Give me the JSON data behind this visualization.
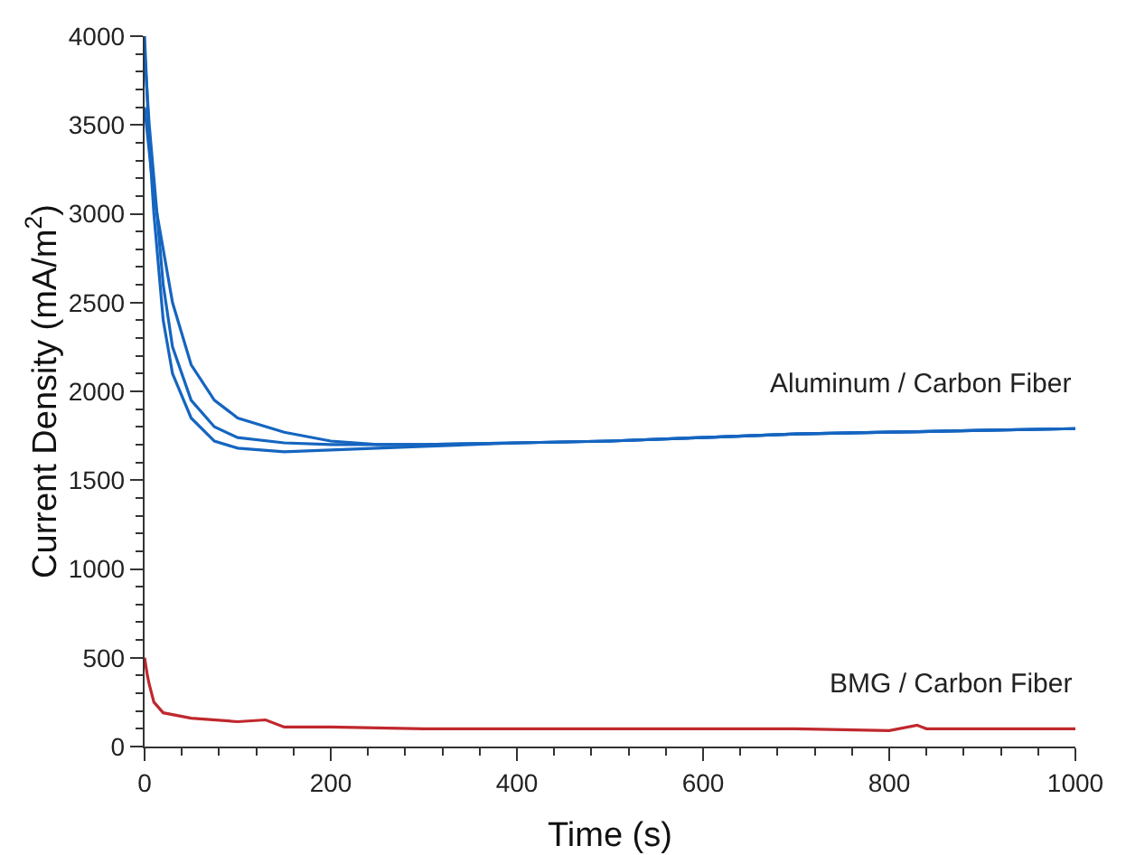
{
  "chart_data": {
    "type": "line",
    "xlabel": "Time (s)",
    "ylabel": "Current Density (mA/m$^{2}$)",
    "xlim": [
      0,
      1000
    ],
    "ylim": [
      0,
      4000
    ],
    "xticks": [
      0,
      200,
      400,
      600,
      800,
      1000
    ],
    "yticks": [
      0,
      500,
      1000,
      1500,
      2000,
      2500,
      3000,
      3500,
      4000
    ],
    "grid": false,
    "legend": false,
    "marker": "none",
    "line_style": "solid",
    "series": [
      {
        "name": "Aluminum / Carbon Fiber",
        "color": "#1565c0",
        "x": [
          0,
          5,
          10,
          20,
          30,
          50,
          75,
          100,
          150,
          200,
          300,
          400,
          500,
          600,
          700,
          800,
          900,
          1000
        ],
        "values": [
          4000,
          3400,
          3000,
          2400,
          2100,
          1850,
          1720,
          1680,
          1660,
          1670,
          1690,
          1710,
          1720,
          1740,
          1760,
          1770,
          1780,
          1790
        ]
      },
      {
        "color": "#1565c0",
        "x": [
          0,
          5,
          10,
          20,
          30,
          50,
          75,
          100,
          150,
          200,
          300,
          400,
          500,
          600,
          700,
          800,
          900,
          1000
        ],
        "values": [
          3900,
          3500,
          3200,
          2600,
          2250,
          1950,
          1800,
          1740,
          1710,
          1700,
          1700,
          1710,
          1720,
          1740,
          1760,
          1770,
          1780,
          1790
        ]
      },
      {
        "color": "#1565c0",
        "x": [
          0,
          5,
          10,
          20,
          30,
          50,
          75,
          100,
          150,
          200,
          250,
          300,
          400,
          500,
          600,
          700,
          800,
          900,
          1000
        ],
        "values": [
          3600,
          3350,
          3100,
          2800,
          2500,
          2150,
          1950,
          1850,
          1770,
          1720,
          1700,
          1700,
          1710,
          1720,
          1740,
          1760,
          1770,
          1780,
          1790
        ]
      },
      {
        "name": "BMG / Carbon Fiber",
        "color": "#c0282d",
        "x": [
          0,
          3,
          5,
          10,
          20,
          50,
          100,
          130,
          150,
          200,
          300,
          400,
          500,
          600,
          700,
          800,
          830,
          840,
          900,
          1000
        ],
        "values": [
          500,
          400,
          350,
          250,
          190,
          160,
          140,
          150,
          110,
          110,
          100,
          100,
          100,
          100,
          100,
          90,
          120,
          100,
          100,
          100
        ]
      }
    ]
  }
}
